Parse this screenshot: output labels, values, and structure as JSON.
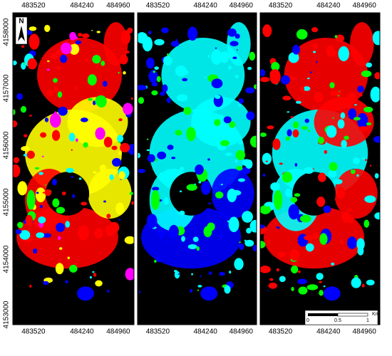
{
  "map": {
    "x_labels": [
      "483520",
      "484240",
      "484960"
    ],
    "y_labels": [
      "4158000",
      "4157000",
      "4156000",
      "4155000",
      "4154000",
      "4153000"
    ],
    "north": "N",
    "scale_labels": [
      "0",
      "0.5",
      "1"
    ],
    "scale_unit": "Km"
  }
}
